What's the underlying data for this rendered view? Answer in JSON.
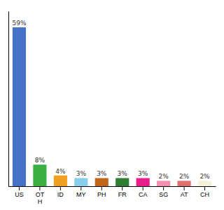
{
  "chart_data": {
    "type": "bar",
    "categories": [
      "US",
      "OT\nH",
      "ID",
      "MY",
      "PH",
      "FR",
      "CA",
      "SG",
      "AT",
      "CH"
    ],
    "values": [
      59,
      8,
      4,
      3,
      3,
      3,
      3,
      2,
      2,
      2
    ],
    "value_labels": [
      "59%",
      "8%",
      "4%",
      "3%",
      "3%",
      "3%",
      "3%",
      "2%",
      "2%",
      "2%"
    ],
    "colors": [
      "#4472c4",
      "#3cb043",
      "#f0a020",
      "#87ceeb",
      "#c0651a",
      "#2e7d32",
      "#e91e8c",
      "#f48fb1",
      "#e07070",
      "#f5f0d8"
    ],
    "ylim": [
      0,
      65
    ],
    "data_labels": true,
    "tick_labels": "x"
  }
}
